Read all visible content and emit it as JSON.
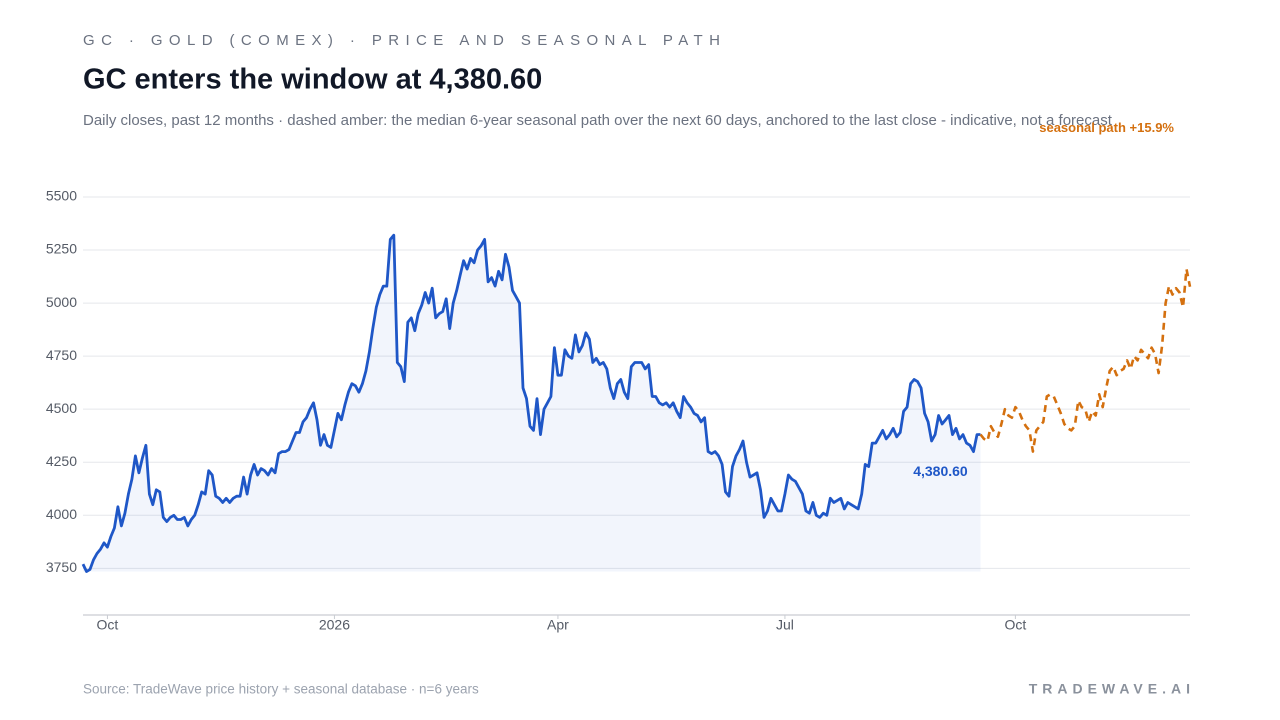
{
  "chart_data": {
    "type": "line",
    "kicker": "GC · GOLD (COMEX) · PRICE AND SEASONAL PATH",
    "title": "GC enters the window at 4,380.60",
    "subtitle": "Daily closes, past 12 months · dashed amber: the median 6-year seasonal path over the next 60 days, anchored to the last close - indicative, not a forecast",
    "source": "Source: TradeWave price history + seasonal database · n=6 years",
    "brand": "TRADEWAVE.AI",
    "xlim": [
      0,
      317
    ],
    "xticks": [
      {
        "value": 7,
        "label": "Oct"
      },
      {
        "value": 72,
        "label": "2026"
      },
      {
        "value": 136,
        "label": "Apr"
      },
      {
        "value": 201,
        "label": "Jul"
      },
      {
        "value": 267,
        "label": "Oct"
      }
    ],
    "ylim": [
      3530,
      5500
    ],
    "yticks": [
      3750,
      4000,
      4250,
      4500,
      4750,
      5000,
      5250,
      5500
    ],
    "grid": true,
    "series": [
      {
        "color": "#1f57c7",
        "fill": true,
        "dashed": false,
        "values": [
          3770,
          3735,
          3745,
          3790,
          3820,
          3840,
          3870,
          3850,
          3900,
          3940,
          4040,
          3950,
          4010,
          4100,
          4170,
          4280,
          4200,
          4270,
          4330,
          4100,
          4050,
          4120,
          4110,
          3990,
          3970,
          3990,
          4000,
          3980,
          3980,
          3990,
          3950,
          3980,
          4000,
          4050,
          4110,
          4100,
          4210,
          4190,
          4090,
          4080,
          4060,
          4080,
          4060,
          4080,
          4090,
          4090,
          4180,
          4100,
          4190,
          4240,
          4190,
          4220,
          4210,
          4190,
          4220,
          4200,
          4290,
          4300,
          4300,
          4310,
          4350,
          4390,
          4390,
          4440,
          4460,
          4500,
          4530,
          4450,
          4330,
          4380,
          4330,
          4320,
          4400,
          4480,
          4450,
          4520,
          4580,
          4620,
          4610,
          4580,
          4620,
          4680,
          4770,
          4880,
          4980,
          5040,
          5080,
          5080,
          5300,
          5320,
          4720,
          4700,
          4630,
          4910,
          4930,
          4870,
          4950,
          4990,
          5050,
          5000,
          5070,
          4930,
          4950,
          4960,
          5020,
          4880,
          5000,
          5060,
          5130,
          5200,
          5160,
          5210,
          5190,
          5250,
          5270,
          5300,
          5100,
          5120,
          5080,
          5150,
          5110,
          5230,
          5170,
          5060,
          5030,
          5000,
          4600,
          4550,
          4420,
          4400,
          4550,
          4380,
          4500,
          4530,
          4560,
          4790,
          4660,
          4660,
          4780,
          4750,
          4740,
          4850,
          4770,
          4800,
          4860,
          4830,
          4720,
          4740,
          4710,
          4720,
          4690,
          4600,
          4550,
          4620,
          4640,
          4580,
          4550,
          4700,
          4720,
          4720,
          4720,
          4690,
          4710,
          4560,
          4560,
          4530,
          4520,
          4530,
          4510,
          4530,
          4490,
          4460,
          4560,
          4530,
          4510,
          4480,
          4470,
          4440,
          4460,
          4300,
          4290,
          4300,
          4280,
          4240,
          4110,
          4090,
          4230,
          4280,
          4310,
          4350,
          4250,
          4180,
          4190,
          4200,
          4120,
          3990,
          4020,
          4080,
          4050,
          4020,
          4020,
          4100,
          4190,
          4170,
          4160,
          4130,
          4100,
          4020,
          4010,
          4060,
          4000,
          3990,
          4010,
          4000,
          4080,
          4060,
          4070,
          4080,
          4030,
          4060,
          4050,
          4040,
          4030,
          4100,
          4240,
          4230,
          4340,
          4340,
          4370,
          4400,
          4360,
          4380,
          4410,
          4370,
          4390,
          4490,
          4510,
          4620,
          4640,
          4630,
          4600,
          4480,
          4440,
          4350,
          4380,
          4470,
          4430,
          4450,
          4470,
          4380,
          4410,
          4360,
          4380,
          4340,
          4330,
          4300,
          4380,
          4380.6,
          null,
          null,
          null,
          null,
          null,
          null,
          null,
          null,
          null,
          null,
          null,
          null,
          null,
          null,
          null,
          null,
          null,
          null,
          null,
          null,
          null,
          null,
          null,
          null,
          null,
          null,
          null,
          null,
          null,
          null,
          null,
          null,
          null,
          null,
          null,
          null,
          null,
          null,
          null,
          null,
          null,
          null,
          null,
          null,
          null,
          null,
          null,
          null,
          null,
          null,
          null,
          null,
          null,
          null,
          null,
          null,
          null,
          null,
          null,
          null
        ]
      },
      {
        "color": "#d4700f",
        "fill": false,
        "dashed": true,
        "values": [
          null,
          null,
          null,
          null,
          null,
          null,
          null,
          null,
          null,
          null,
          null,
          null,
          null,
          null,
          null,
          null,
          null,
          null,
          null,
          null,
          null,
          null,
          null,
          null,
          null,
          null,
          null,
          null,
          null,
          null,
          null,
          null,
          null,
          null,
          null,
          null,
          null,
          null,
          null,
          null,
          null,
          null,
          null,
          null,
          null,
          null,
          null,
          null,
          null,
          null,
          null,
          null,
          null,
          null,
          null,
          null,
          null,
          null,
          null,
          null,
          null,
          null,
          null,
          null,
          null,
          null,
          null,
          null,
          null,
          null,
          null,
          null,
          null,
          null,
          null,
          null,
          null,
          null,
          null,
          null,
          null,
          null,
          null,
          null,
          null,
          null,
          null,
          null,
          null,
          null,
          null,
          null,
          null,
          null,
          null,
          null,
          null,
          null,
          null,
          null,
          null,
          null,
          null,
          null,
          null,
          null,
          null,
          null,
          null,
          null,
          null,
          null,
          null,
          null,
          null,
          null,
          null,
          null,
          null,
          null,
          null,
          null,
          null,
          null,
          null,
          null,
          null,
          null,
          null,
          null,
          null,
          null,
          null,
          null,
          null,
          null,
          null,
          null,
          null,
          null,
          null,
          null,
          null,
          null,
          null,
          null,
          null,
          null,
          null,
          null,
          null,
          null,
          null,
          null,
          null,
          null,
          null,
          null,
          null,
          null,
          null,
          null,
          null,
          null,
          null,
          null,
          null,
          null,
          null,
          null,
          null,
          null,
          null,
          null,
          null,
          null,
          null,
          null,
          null,
          null,
          null,
          null,
          null,
          null,
          null,
          null,
          null,
          null,
          null,
          null,
          null,
          null,
          null,
          null,
          null,
          null,
          null,
          null,
          null,
          null,
          null,
          null,
          null,
          null,
          null,
          null,
          null,
          null,
          null,
          null,
          null,
          null,
          null,
          null,
          null,
          null,
          null,
          null,
          null,
          null,
          null,
          null,
          null,
          null,
          null,
          null,
          null,
          null,
          null,
          null,
          null,
          null,
          null,
          null,
          null,
          null,
          null,
          null,
          null,
          null,
          null,
          null,
          null,
          null,
          null,
          null,
          null,
          null,
          null,
          null,
          null,
          null,
          null,
          null,
          null,
          null,
          null,
          4380.6,
          4360,
          4350,
          4420,
          4390,
          4370,
          4430,
          4500,
          4470,
          4460,
          4510,
          4490,
          4450,
          4420,
          4400,
          4300,
          4400,
          4420,
          4440,
          4560,
          4570,
          4560,
          4520,
          4480,
          4430,
          4410,
          4400,
          4420,
          4540,
          4510,
          4500,
          4440,
          4490,
          4470,
          4570,
          4510,
          4600,
          4680,
          4700,
          4660,
          4680,
          4690,
          4730,
          4690,
          4750,
          4730,
          4780,
          4760,
          4740,
          4790,
          4760,
          4670,
          4800,
          5000,
          5080,
          5040,
          5070,
          5050,
          4980,
          5160,
          5077
        ]
      }
    ],
    "annotations": [
      {
        "text": "4,380.60",
        "series": 0,
        "index": 257,
        "color": "#1f57c7"
      },
      {
        "text": "seasonal path +15.9%",
        "series": 1,
        "index": 317,
        "color": "#d4700f"
      }
    ]
  }
}
